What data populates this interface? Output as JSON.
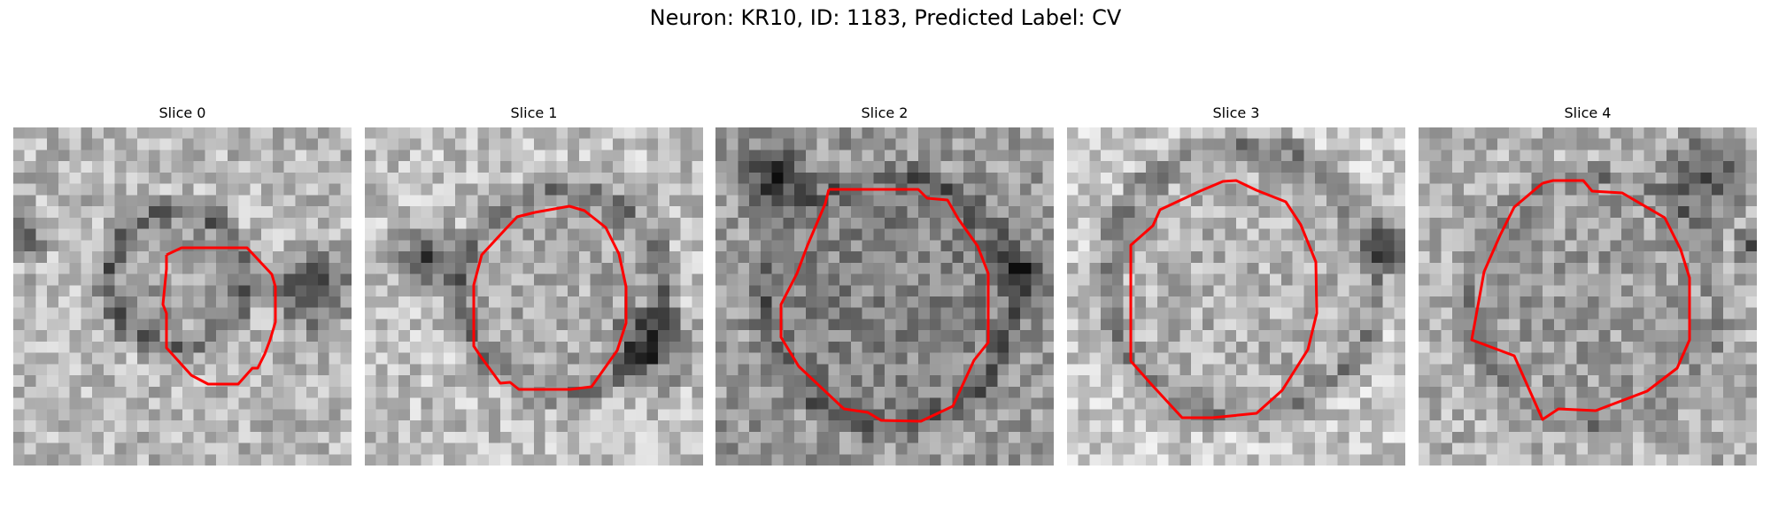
{
  "figure": {
    "title": "Neuron: KR10, ID: 1183, Predicted Label: CV"
  },
  "panels": [
    {
      "title": "Slice 0"
    },
    {
      "title": "Slice 1"
    },
    {
      "title": "Slice 2"
    },
    {
      "title": "Slice 3"
    },
    {
      "title": "Slice 4"
    }
  ],
  "colors": {
    "contour": "#ff0000",
    "colormap": "grayscale"
  }
}
